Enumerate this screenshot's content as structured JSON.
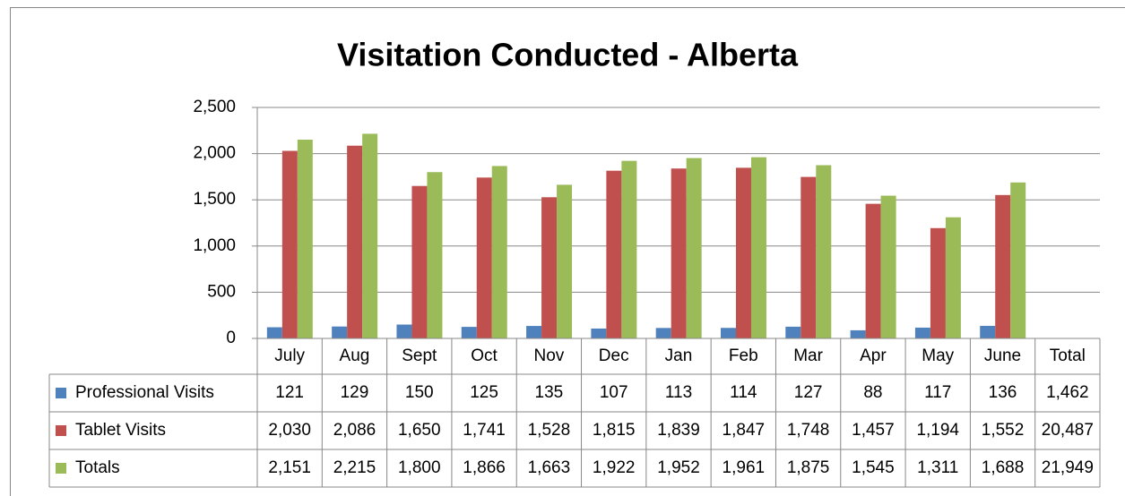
{
  "chart_data": {
    "type": "bar",
    "title": "Visitation Conducted - Alberta",
    "categories": [
      "July",
      "Aug",
      "Sept",
      "Oct",
      "Nov",
      "Dec",
      "Jan",
      "Feb",
      "Mar",
      "Apr",
      "May",
      "June"
    ],
    "series": [
      {
        "name": "Professional Visits",
        "color": "#4f81bd",
        "values": [
          121,
          129,
          150,
          125,
          135,
          107,
          113,
          114,
          127,
          88,
          117,
          136
        ]
      },
      {
        "name": "Tablet Visits",
        "color": "#c0504d",
        "values": [
          2030,
          2086,
          1650,
          1741,
          1528,
          1815,
          1839,
          1847,
          1748,
          1457,
          1194,
          1552
        ],
        "value_labels": [
          "2,030",
          "2,086",
          "1,650",
          "1,741",
          "1,528",
          "1,815",
          "1,839",
          "1,847",
          "1,748",
          "1,457",
          "1,194",
          "1,552"
        ]
      },
      {
        "name": "Totals",
        "color": "#9bbb59",
        "values": [
          2151,
          2215,
          1800,
          1866,
          1663,
          1922,
          1952,
          1961,
          1875,
          1545,
          1311,
          1688
        ],
        "value_labels": [
          "2,151",
          "2,215",
          "1,800",
          "1,866",
          "1,663",
          "1,922",
          "1,952",
          "1,961",
          "1,875",
          "1,545",
          "1,311",
          "1,688"
        ]
      }
    ],
    "total_column": {
      "label": "Total",
      "values": [
        1462,
        20487,
        21949
      ],
      "value_labels": [
        "1,462",
        "20,487",
        "21,949"
      ]
    },
    "ylim": [
      0,
      2500
    ],
    "yticks": [
      0,
      500,
      {
        "value": 1000,
        "label": "1,000"
      },
      {
        "value": 1500,
        "label": "1,500"
      },
      {
        "value": 2000,
        "label": "2,000"
      },
      {
        "value": 2500,
        "label": "2,500"
      }
    ],
    "grid": true
  }
}
